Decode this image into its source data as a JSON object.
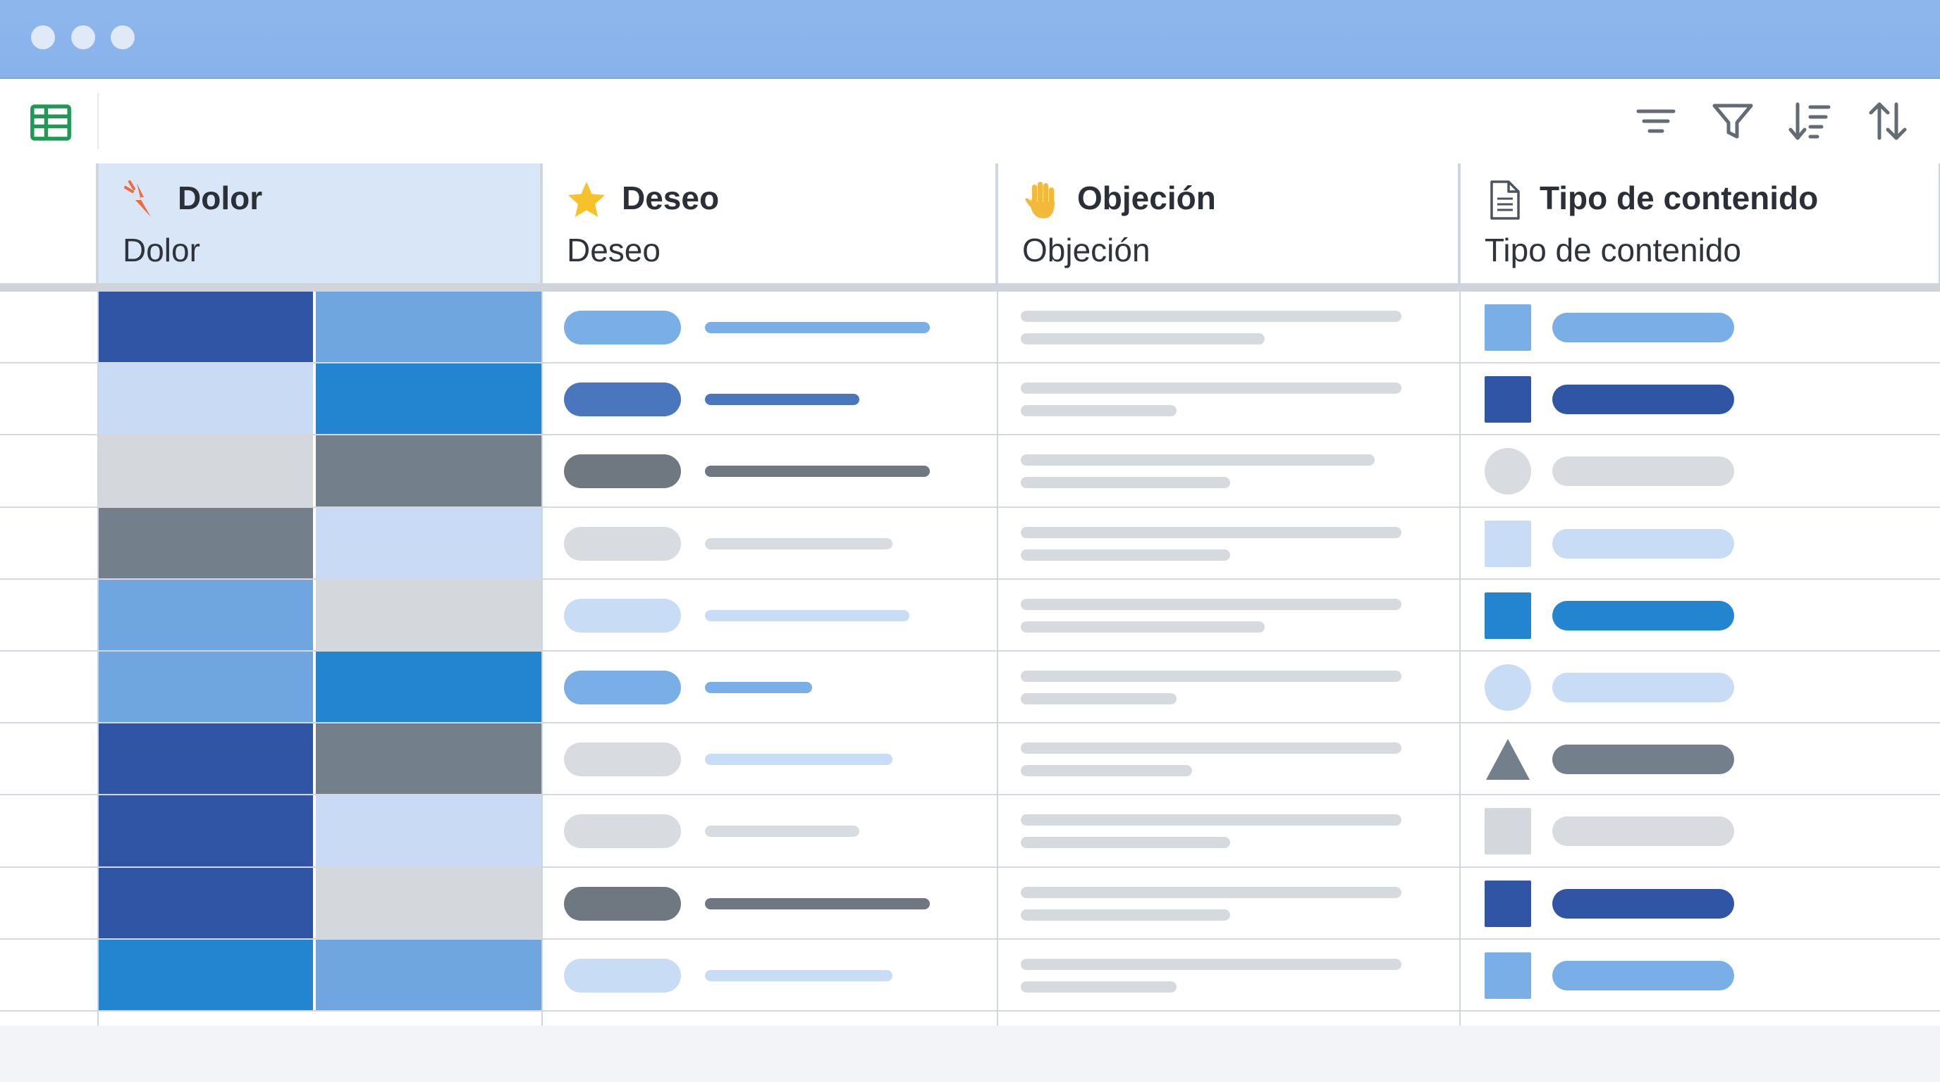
{
  "window": {
    "controls": [
      "close",
      "minimize",
      "maximize"
    ]
  },
  "toolbar": {
    "app_icon": "spreadsheet-grid-icon",
    "tools": [
      "filter-lines-icon",
      "funnel-filter-icon",
      "sort-descending-icon",
      "sort-toggle-icon"
    ]
  },
  "columns": [
    {
      "id": "dolor",
      "icon": "pain-lightning-icon",
      "title": "Dolor",
      "subtitle": "Dolor"
    },
    {
      "id": "deseo",
      "icon": "star-icon",
      "title": "Deseo",
      "subtitle": "Deseo"
    },
    {
      "id": "objecion",
      "icon": "raised-hand-icon",
      "title": "Objeción",
      "subtitle": "Objeción"
    },
    {
      "id": "tipo",
      "icon": "document-icon",
      "title": "Tipo de contenido",
      "subtitle": "Tipo de contenido"
    }
  ],
  "colors": {
    "dark_blue": "#2f55a4",
    "mid_blue": "#6fa6e0",
    "bright_blue": "#2384d0",
    "pale_blue": "#c9daf4",
    "gray_dark": "#737f8a",
    "gray_light": "#d4d7dc",
    "pill_mid": "#7aaee6",
    "pill_dark": "#4a76bd",
    "pill_gray": "#6f7780",
    "pill_light": "#d8dbe0",
    "pill_pale": "#c9dcf5"
  },
  "rows": [
    {
      "dolor": [
        "dark_blue",
        "mid_blue"
      ],
      "deseo": {
        "pill": "pill_mid",
        "bar": "pill_mid",
        "bar_len": 0.9
      },
      "obj": [
        1.0,
        0.64
      ],
      "tipo": {
        "shape": "square",
        "color": "pill_mid",
        "bar": "pill_mid"
      }
    },
    {
      "dolor": [
        "pale_blue",
        "bright_blue"
      ],
      "deseo": {
        "pill": "pill_dark",
        "bar": "pill_dark",
        "bar_len": 0.62
      },
      "obj": [
        1.0,
        0.41
      ],
      "tipo": {
        "shape": "square",
        "color": "dark_blue",
        "bar": "dark_blue"
      }
    },
    {
      "dolor": [
        "gray_light",
        "gray_dark"
      ],
      "deseo": {
        "pill": "pill_gray",
        "bar": "pill_gray",
        "bar_len": 0.9
      },
      "obj": [
        0.93,
        0.55
      ],
      "tipo": {
        "shape": "circle",
        "color": "pill_light",
        "bar": "pill_light"
      }
    },
    {
      "dolor": [
        "gray_dark",
        "pale_blue"
      ],
      "deseo": {
        "pill": "pill_light",
        "bar": "pill_light",
        "bar_len": 0.75
      },
      "obj": [
        1.0,
        0.55
      ],
      "tipo": {
        "shape": "square",
        "color": "pill_pale",
        "bar": "pill_pale"
      }
    },
    {
      "dolor": [
        "mid_blue",
        "gray_light"
      ],
      "deseo": {
        "pill": "pill_pale",
        "bar": "pill_pale",
        "bar_len": 0.82
      },
      "obj": [
        1.0,
        0.64
      ],
      "tipo": {
        "shape": "square",
        "color": "bright_blue",
        "bar": "bright_blue"
      }
    },
    {
      "dolor": [
        "mid_blue",
        "bright_blue"
      ],
      "deseo": {
        "pill": "pill_mid",
        "bar": "pill_mid",
        "bar_len": 0.43
      },
      "obj": [
        1.0,
        0.41
      ],
      "tipo": {
        "shape": "circle",
        "color": "pill_pale",
        "bar": "pill_pale"
      }
    },
    {
      "dolor": [
        "dark_blue",
        "gray_dark"
      ],
      "deseo": {
        "pill": "pill_light",
        "bar": "pill_pale",
        "bar_len": 0.75
      },
      "obj": [
        1.0,
        0.45
      ],
      "tipo": {
        "shape": "triangle",
        "color": "gray_dark",
        "bar": "gray_dark"
      }
    },
    {
      "dolor": [
        "dark_blue",
        "pale_blue"
      ],
      "deseo": {
        "pill": "pill_light",
        "bar": "pill_light",
        "bar_len": 0.62
      },
      "obj": [
        1.0,
        0.55
      ],
      "tipo": {
        "shape": "square",
        "color": "gray_light",
        "bar": "pill_light"
      }
    },
    {
      "dolor": [
        "dark_blue",
        "gray_light"
      ],
      "deseo": {
        "pill": "pill_gray",
        "bar": "pill_gray",
        "bar_len": 0.9
      },
      "obj": [
        1.0,
        0.55
      ],
      "tipo": {
        "shape": "square",
        "color": "dark_blue",
        "bar": "dark_blue"
      }
    },
    {
      "dolor": [
        "bright_blue",
        "mid_blue"
      ],
      "deseo": {
        "pill": "pill_pale",
        "bar": "pill_pale",
        "bar_len": 0.75
      },
      "obj": [
        1.0,
        0.41
      ],
      "tipo": {
        "shape": "square",
        "color": "pill_mid",
        "bar": "pill_mid"
      }
    }
  ]
}
